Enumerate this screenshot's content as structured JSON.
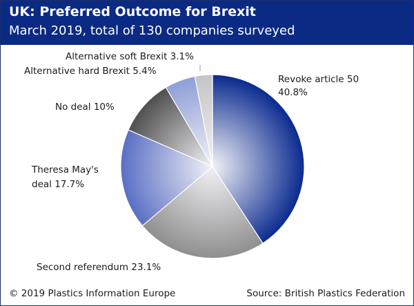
{
  "header": {
    "title": "UK: Preferred Outcome for Brexit",
    "subtitle": "March 2019, total of 130 companies surveyed"
  },
  "footer": {
    "copyright": "© 2019 Plastics Information Europe",
    "source": "Source: British Plastics Federation"
  },
  "colors": {
    "header_bg": "#0b2a84",
    "revoke": "#0a2a8f",
    "referendum": "#8f8f8f",
    "may_deal": "#5a6fc4",
    "no_deal": "#4f4f4f",
    "hard": "#8e9ed8",
    "soft": "#c4c4c4"
  },
  "chart_data": {
    "type": "pie",
    "title": "UK: Preferred Outcome for Brexit",
    "subtitle": "March 2019, total of 130 companies surveyed",
    "unit": "%",
    "slices": [
      {
        "name": "Revoke article 50",
        "value": 40.8,
        "label_lines": [
          "Revoke article 50",
          "40.8%"
        ]
      },
      {
        "name": "Second referendum",
        "value": 23.1,
        "label_lines": [
          "Second referendum 23.1%"
        ]
      },
      {
        "name": "Theresa May's deal",
        "value": 17.7,
        "label_lines": [
          "Theresa May's",
          "deal 17.7%"
        ]
      },
      {
        "name": "No deal",
        "value": 10,
        "label_lines": [
          "No deal 10%"
        ]
      },
      {
        "name": "Alternative hard Brexit",
        "value": 5.4,
        "label_lines": [
          "Alternative hard Brexit 5.4%"
        ]
      },
      {
        "name": "Alternative soft Brexit",
        "value": 3.1,
        "label_lines": [
          "Alternative soft Brexit 3.1%"
        ]
      }
    ]
  }
}
